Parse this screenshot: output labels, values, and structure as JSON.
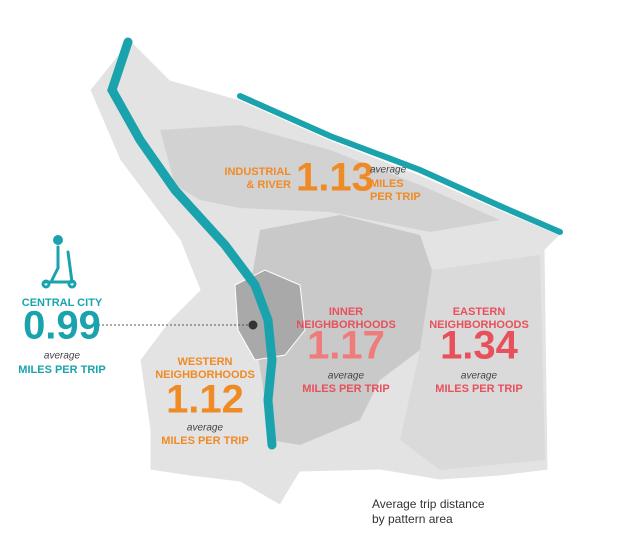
{
  "areas": [
    {
      "name_lines": [
        "CENTRAL CITY"
      ],
      "value": 0.99,
      "average": "average",
      "unit_lines": [
        "MILES PER TRIP"
      ]
    },
    {
      "name_lines": [
        "INDUSTRIAL",
        "& RIVER"
      ],
      "value": 1.13,
      "average": "average",
      "unit_lines": [
        "MILES",
        "PER TRIP"
      ]
    },
    {
      "name_lines": [
        "INNER",
        "NEIGHBORHOODS"
      ],
      "value": 1.17,
      "average": "average",
      "unit_lines": [
        "MILES PER TRIP"
      ]
    },
    {
      "name_lines": [
        "EASTERN",
        "NEIGHBORHOODS"
      ],
      "value": 1.34,
      "average": "average",
      "unit_lines": [
        "MILES PER TRIP"
      ]
    },
    {
      "name_lines": [
        "WESTERN",
        "NEIGHBORHOODS"
      ],
      "value": 1.12,
      "average": "average",
      "unit_lines": [
        "MILES PER TRIP"
      ]
    }
  ],
  "caption_lines": [
    "Average trip distance",
    "by pattern area"
  ]
}
